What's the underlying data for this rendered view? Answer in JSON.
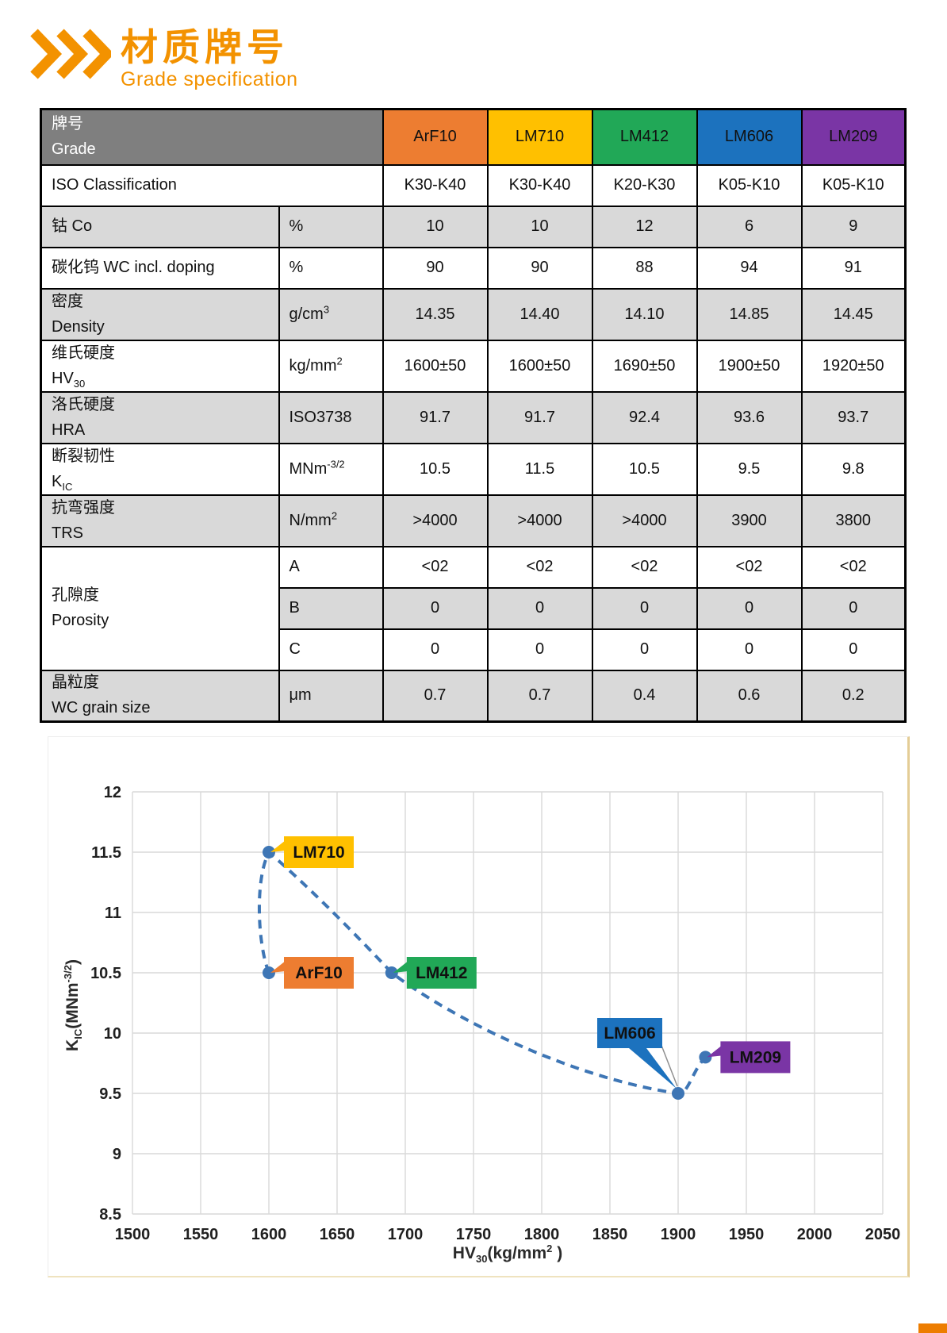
{
  "header": {
    "title_zh": "材质牌号",
    "subtitle_en": "Grade specification",
    "accent_color": "#F39200"
  },
  "table": {
    "corner": {
      "zh": "牌号",
      "en": "Grade"
    },
    "grades": [
      {
        "name": "ArF10",
        "color": "#ED7D31"
      },
      {
        "name": "LM710",
        "color": "#FFC000"
      },
      {
        "name": "LM412",
        "color": "#21A857"
      },
      {
        "name": "LM606",
        "color": "#1C72BE"
      },
      {
        "name": "LM209",
        "color": "#7A35A5"
      }
    ],
    "iso_row": {
      "key": "iso",
      "label": "ISO Classification",
      "values": [
        "K30-K40",
        "K30-K40",
        "K20-K30",
        "K05-K10",
        "K05-K10"
      ]
    },
    "rows": [
      {
        "key": "co",
        "label_lines": [
          "钴 Co"
        ],
        "unit": "%",
        "values": [
          "10",
          "10",
          "12",
          "6",
          "9"
        ],
        "shaded": true,
        "size": "short"
      },
      {
        "key": "wc",
        "label_lines": [
          "碳化钨 WC incl. doping"
        ],
        "unit": "%",
        "values": [
          "90",
          "90",
          "88",
          "94",
          "91"
        ],
        "shaded": false,
        "size": "short"
      },
      {
        "key": "density",
        "label_lines": [
          "密度",
          "Density"
        ],
        "unit": "g/cm^{3}",
        "values": [
          "14.35",
          "14.40",
          "14.10",
          "14.85",
          "14.45"
        ],
        "shaded": true,
        "size": "tall"
      },
      {
        "key": "hv30",
        "label_lines": [
          "维氏硬度",
          "HV_{30}"
        ],
        "unit": "kg/mm^{2}",
        "values": [
          "1600±50",
          "1600±50",
          "1690±50",
          "1900±50",
          "1920±50"
        ],
        "shaded": false,
        "size": "tall"
      },
      {
        "key": "hra",
        "label_lines": [
          "洛氏硬度",
          "HRA"
        ],
        "unit": "ISO3738",
        "values": [
          "91.7",
          "91.7",
          "92.4",
          "93.6",
          "93.7"
        ],
        "shaded": true,
        "size": "tall"
      },
      {
        "key": "kic",
        "label_lines": [
          "断裂韧性",
          "K_{IC}"
        ],
        "unit": "MNm^{-3/2}",
        "values": [
          "10.5",
          "11.5",
          "10.5",
          "9.5",
          "9.8"
        ],
        "shaded": false,
        "size": "tall"
      },
      {
        "key": "trs",
        "label_lines": [
          "抗弯强度",
          "TRS"
        ],
        "unit": "N/mm^{2}",
        "values": [
          ">4000",
          ">4000",
          ">4000",
          "3900",
          "3800"
        ],
        "shaded": true,
        "size": "tall"
      }
    ],
    "porosity": {
      "key": "porosity",
      "label_lines": [
        "孔隙度",
        "Porosity"
      ],
      "subrows": [
        {
          "key": "a",
          "unit": "A",
          "values": [
            "<02",
            "<02",
            "<02",
            "<02",
            "<02"
          ],
          "shaded": false
        },
        {
          "key": "b",
          "unit": "B",
          "values": [
            "0",
            "0",
            "0",
            "0",
            "0"
          ],
          "shaded": true
        },
        {
          "key": "c",
          "unit": "C",
          "values": [
            "0",
            "0",
            "0",
            "0",
            "0"
          ],
          "shaded": false
        }
      ]
    },
    "grain_row": {
      "key": "grain",
      "label_lines": [
        "晶粒度",
        "WC grain size"
      ],
      "unit": "μm",
      "values": [
        "0.7",
        "0.7",
        "0.4",
        "0.6",
        "0.2"
      ],
      "shaded": true,
      "size": "tall"
    }
  },
  "chart_data": {
    "type": "scatter",
    "title": "",
    "xlabel": "HV_{30}(kg/mm^{2} )",
    "ylabel": "K_{IC}(MNm^{-3/2})",
    "xlim": [
      1500,
      2050
    ],
    "ylim": [
      8.5,
      12
    ],
    "x_ticks": [
      1500,
      1550,
      1600,
      1650,
      1700,
      1750,
      1800,
      1850,
      1900,
      1950,
      2000,
      2050
    ],
    "y_ticks": [
      8.5,
      9,
      9.5,
      10,
      10.5,
      11,
      11.5,
      12
    ],
    "grid": true,
    "legend": "none",
    "line": {
      "style": "dashed",
      "color": "#3E76B5"
    },
    "points": [
      {
        "label": "ArF10",
        "x": 1600,
        "y": 10.5,
        "color": "#ED7D31",
        "callout": "right"
      },
      {
        "label": "LM710",
        "x": 1600,
        "y": 11.5,
        "color": "#FFC000",
        "callout": "right"
      },
      {
        "label": "LM412",
        "x": 1690,
        "y": 10.5,
        "color": "#21A857",
        "callout": "right"
      },
      {
        "label": "LM606",
        "x": 1900,
        "y": 9.5,
        "color": "#1C72BE",
        "callout": "above-left"
      },
      {
        "label": "LM209",
        "x": 1920,
        "y": 9.8,
        "color": "#7A35A5",
        "callout": "right"
      }
    ],
    "curve_order": [
      "ArF10",
      "LM710",
      "LM412",
      "LM606",
      "LM209"
    ],
    "grid_color": "#D9D9D9"
  },
  "footer": {
    "corner_color": "#ED7D00"
  }
}
